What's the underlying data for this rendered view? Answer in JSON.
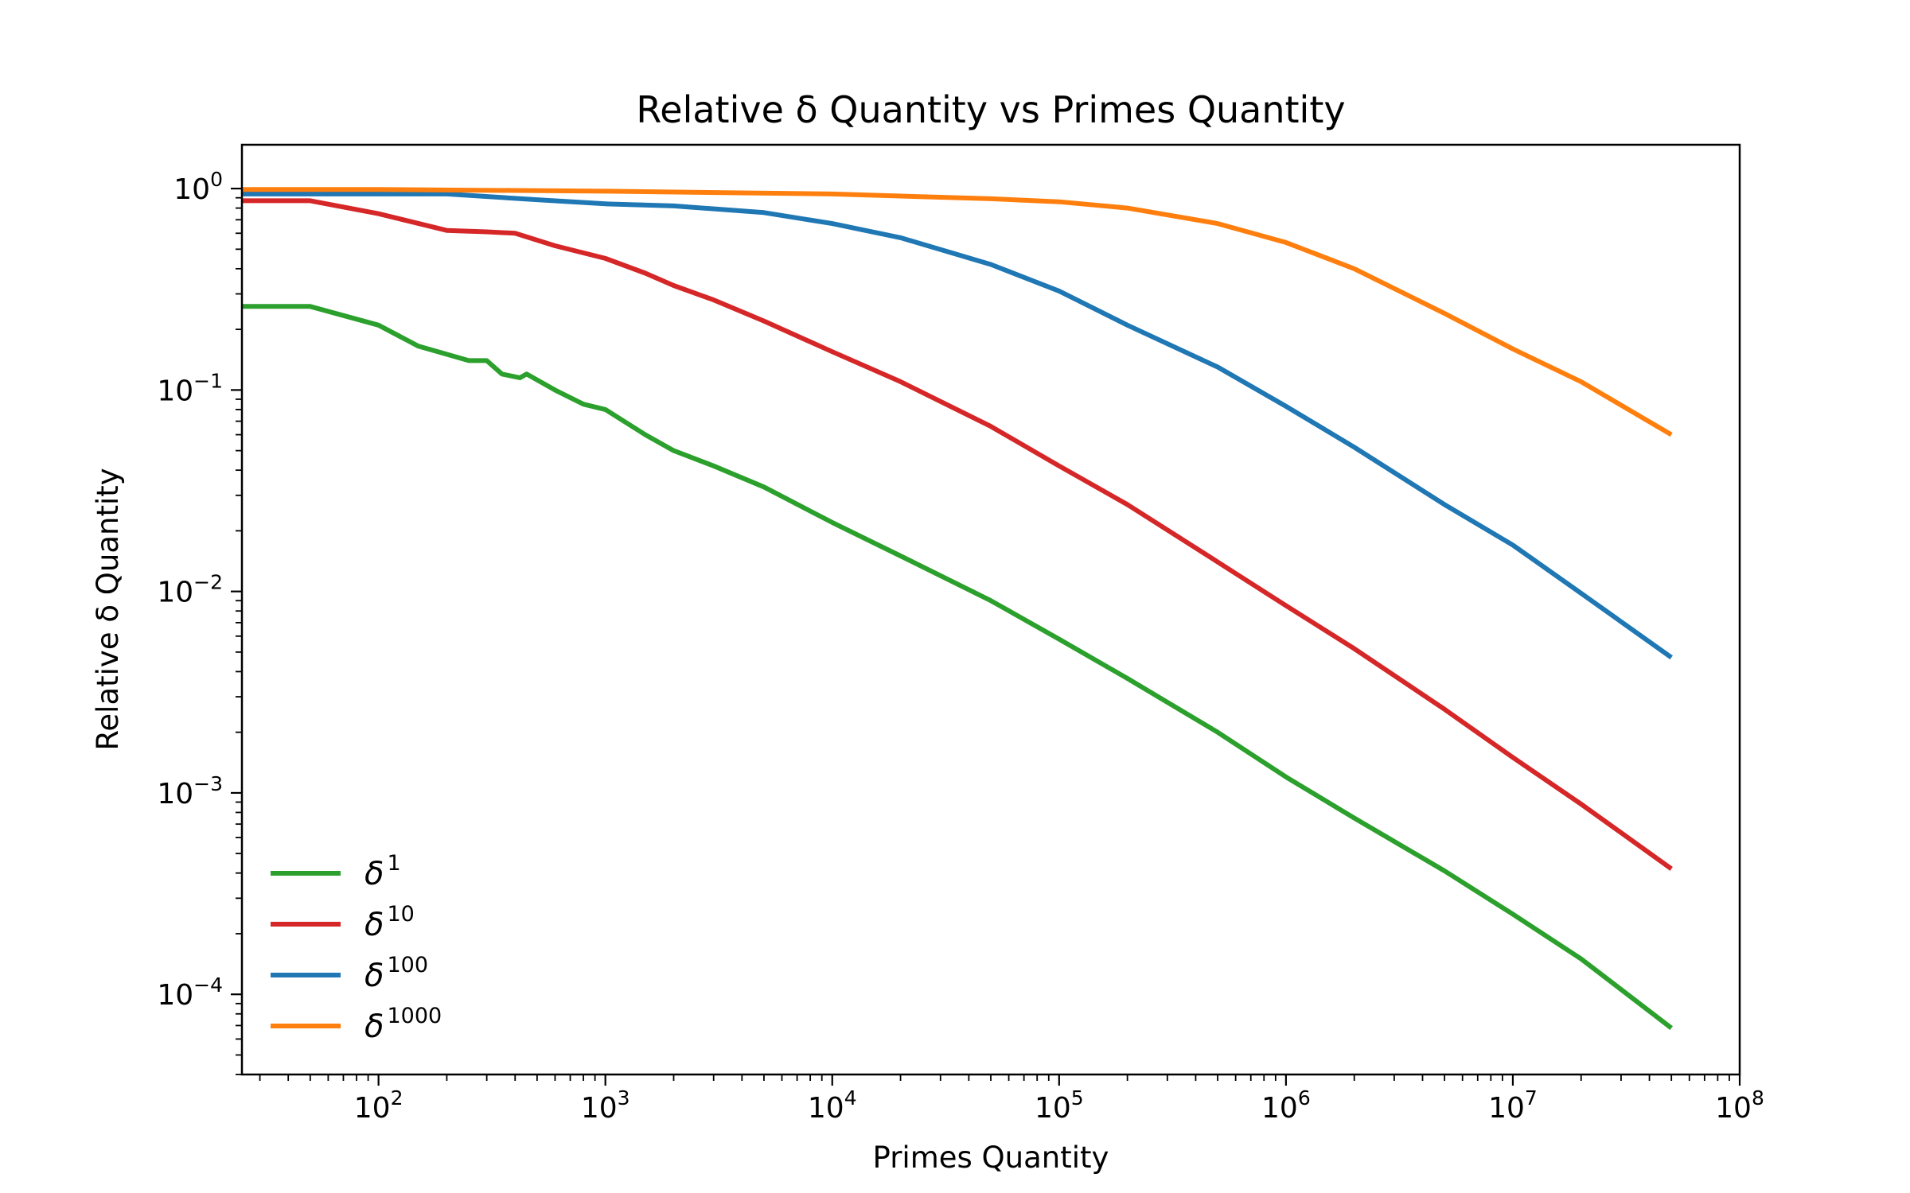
{
  "chart_data": {
    "type": "line",
    "title": "Relative δ Quantity vs Primes Quantity",
    "xlabel": "Primes Quantity",
    "ylabel": "Relative δ Quantity",
    "xscale": "log",
    "yscale": "log",
    "xlim": [
      25,
      100000000
    ],
    "ylim": [
      4e-05,
      1.65
    ],
    "x_ticks": [
      {
        "base": "10",
        "exp": "2",
        "value": 100
      },
      {
        "base": "10",
        "exp": "3",
        "value": 1000
      },
      {
        "base": "10",
        "exp": "4",
        "value": 10000
      },
      {
        "base": "10",
        "exp": "5",
        "value": 100000
      },
      {
        "base": "10",
        "exp": "6",
        "value": 1000000
      },
      {
        "base": "10",
        "exp": "7",
        "value": 10000000
      },
      {
        "base": "10",
        "exp": "8",
        "value": 100000000
      }
    ],
    "y_ticks": [
      {
        "base": "10",
        "exp": "0",
        "value": 1
      },
      {
        "base": "10",
        "exp": "−1",
        "value": 0.1
      },
      {
        "base": "10",
        "exp": "−2",
        "value": 0.01
      },
      {
        "base": "10",
        "exp": "−3",
        "value": 0.001
      },
      {
        "base": "10",
        "exp": "−4",
        "value": 0.0001
      }
    ],
    "grid": false,
    "legend_position": "lower-left",
    "series": [
      {
        "name": "δ1",
        "name_base": "δ",
        "name_exp": "1",
        "color": "#2ca02c",
        "points": [
          [
            25,
            0.26
          ],
          [
            50,
            0.26
          ],
          [
            100,
            0.21
          ],
          [
            150,
            0.165
          ],
          [
            250,
            0.14
          ],
          [
            300,
            0.14
          ],
          [
            350,
            0.12
          ],
          [
            420,
            0.115
          ],
          [
            450,
            0.12
          ],
          [
            600,
            0.1
          ],
          [
            800,
            0.085
          ],
          [
            1000,
            0.08
          ],
          [
            1500,
            0.06
          ],
          [
            2000,
            0.05
          ],
          [
            3000,
            0.042
          ],
          [
            5000,
            0.033
          ],
          [
            10000,
            0.022
          ],
          [
            20000,
            0.015
          ],
          [
            50000,
            0.009
          ],
          [
            100000,
            0.0058
          ],
          [
            200000,
            0.0037
          ],
          [
            500000,
            0.002
          ],
          [
            1000000,
            0.0012
          ],
          [
            2000000,
            0.00075
          ],
          [
            5000000,
            0.00041
          ],
          [
            10000000,
            0.00025
          ],
          [
            20000000,
            0.00015
          ],
          [
            50000000,
            6.8e-05
          ]
        ]
      },
      {
        "name": "δ10",
        "name_base": "δ",
        "name_exp": "10",
        "color": "#d62728",
        "points": [
          [
            25,
            0.87
          ],
          [
            50,
            0.87
          ],
          [
            100,
            0.75
          ],
          [
            200,
            0.62
          ],
          [
            300,
            0.61
          ],
          [
            400,
            0.6
          ],
          [
            600,
            0.52
          ],
          [
            1000,
            0.45
          ],
          [
            1500,
            0.38
          ],
          [
            2000,
            0.33
          ],
          [
            3000,
            0.28
          ],
          [
            5000,
            0.22
          ],
          [
            10000,
            0.155
          ],
          [
            20000,
            0.11
          ],
          [
            50000,
            0.066
          ],
          [
            100000,
            0.042
          ],
          [
            200000,
            0.027
          ],
          [
            500000,
            0.014
          ],
          [
            1000000,
            0.0085
          ],
          [
            2000000,
            0.0052
          ],
          [
            5000000,
            0.0026
          ],
          [
            10000000,
            0.0015
          ],
          [
            20000000,
            0.00088
          ],
          [
            50000000,
            0.00042
          ]
        ]
      },
      {
        "name": "δ100",
        "name_base": "δ",
        "name_exp": "100",
        "color": "#1f77b4",
        "points": [
          [
            25,
            0.94
          ],
          [
            100,
            0.94
          ],
          [
            200,
            0.94
          ],
          [
            500,
            0.88
          ],
          [
            1000,
            0.84
          ],
          [
            2000,
            0.82
          ],
          [
            5000,
            0.76
          ],
          [
            10000,
            0.67
          ],
          [
            20000,
            0.57
          ],
          [
            50000,
            0.42
          ],
          [
            100000,
            0.31
          ],
          [
            200000,
            0.21
          ],
          [
            500000,
            0.13
          ],
          [
            1000000,
            0.083
          ],
          [
            2000000,
            0.052
          ],
          [
            5000000,
            0.027
          ],
          [
            10000000,
            0.017
          ],
          [
            20000000,
            0.0098
          ],
          [
            50000000,
            0.0047
          ]
        ]
      },
      {
        "name": "δ1000",
        "name_base": "δ",
        "name_exp": "1000",
        "color": "#ff7f0e",
        "points": [
          [
            25,
            0.99
          ],
          [
            100,
            0.99
          ],
          [
            1000,
            0.97
          ],
          [
            10000,
            0.94
          ],
          [
            50000,
            0.89
          ],
          [
            100000,
            0.86
          ],
          [
            200000,
            0.8
          ],
          [
            500000,
            0.67
          ],
          [
            1000000,
            0.54
          ],
          [
            2000000,
            0.4
          ],
          [
            5000000,
            0.24
          ],
          [
            10000000,
            0.16
          ],
          [
            20000000,
            0.11
          ],
          [
            50000000,
            0.06
          ]
        ]
      }
    ]
  }
}
